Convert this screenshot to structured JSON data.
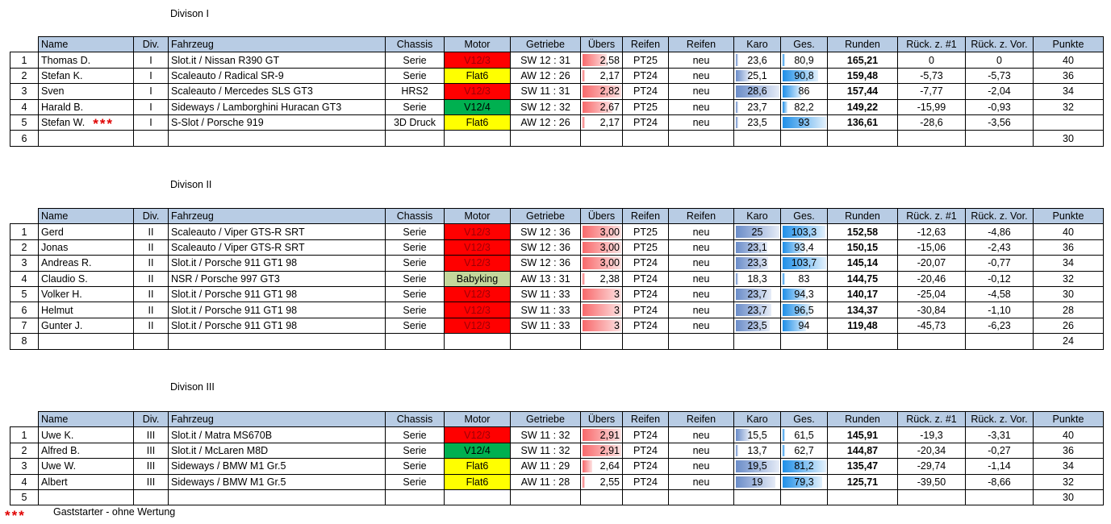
{
  "divisions": [
    {
      "title": "Divison I",
      "header": [
        "Name",
        "Div.",
        "Fahrzeug",
        "Chassis",
        "Motor",
        "Getriebe",
        "Übers",
        "Reifen",
        "Reifen",
        "Karo",
        "Ges.",
        "Runden",
        "Rück. z. #1",
        "Rück. z. Vor.",
        "Punkte"
      ],
      "rows": [
        {
          "cells": [
            "1",
            "Thomas D.",
            "I",
            "Slot.it / Nissan R390 GT",
            "Serie",
            "V12/3",
            "SW 12 : 31",
            "2,58",
            "PT25",
            "neu",
            "23,6",
            "80,9",
            "165,21",
            "0",
            "0",
            "40"
          ],
          "motor_color": "#ff0000"
        },
        {
          "cells": [
            "2",
            "Stefan K.",
            "I",
            "Scaleauto / Radical SR-9",
            "Serie",
            "Flat6",
            "AW 12 : 26",
            "2,17",
            "PT24",
            "neu",
            "25,1",
            "90,8",
            "159,48",
            "-5,73",
            "-5,73",
            "36"
          ],
          "motor_color": "#ffff00"
        },
        {
          "cells": [
            "3",
            "Sven",
            "I",
            "Scaleauto / Mercedes SLS GT3",
            "HRS2",
            "V12/3",
            "SW 11 : 31",
            "2,82",
            "PT24",
            "neu",
            "28,6",
            "86",
            "157,44",
            "-7,77",
            "-2,04",
            "34"
          ],
          "motor_color": "#ff0000"
        },
        {
          "cells": [
            "4",
            "Harald B.",
            "I",
            "Sideways / Lamborghini Huracan GT3",
            "Serie",
            "V12/4",
            "SW 12 : 32",
            "2,67",
            "PT25",
            "neu",
            "23,7",
            "82,2",
            "149,22",
            "-15,99",
            "-0,93",
            "32"
          ],
          "motor_color": "#00b050"
        },
        {
          "cells": [
            "5",
            "Stefan W.",
            "I",
            "S-Slot / Porsche 919",
            "3D Druck",
            "Flat6",
            "AW 12 : 26",
            "2,17",
            "PT24",
            "neu",
            "23,5",
            "93",
            "136,61",
            "-28,6",
            "-3,56",
            null
          ],
          "motor_color": "#ffff00",
          "marker": "***"
        },
        {
          "cells": [
            "6",
            null,
            null,
            null,
            null,
            null,
            null,
            null,
            null,
            null,
            null,
            null,
            null,
            null,
            null,
            "30"
          ]
        }
      ]
    },
    {
      "title": "Divison II",
      "header": [
        "Name",
        "Div.",
        "Fahrzeug",
        "Chassis",
        "Motor",
        "Getriebe",
        "Übers",
        "Reifen",
        "Reifen",
        "Karo",
        "Ges.",
        "Runden",
        "Rück. z. #1",
        "Rück. z. Vor.",
        "Punkte"
      ],
      "rows": [
        {
          "cells": [
            "1",
            "Gerd",
            "II",
            "Scaleauto / Viper GTS-R SRT",
            "Serie",
            "V12/3",
            "SW 12 : 36",
            "3,00",
            "PT25",
            "neu",
            "25",
            "103,3",
            "152,58",
            "-12,63",
            "-4,86",
            "40"
          ],
          "motor_color": "#ff0000"
        },
        {
          "cells": [
            "2",
            "Jonas",
            "II",
            "Scaleauto / Viper GTS-R SRT",
            "Serie",
            "V12/3",
            "SW 12 : 36",
            "3,00",
            "PT25",
            "neu",
            "23,1",
            "93,4",
            "150,15",
            "-15,06",
            "-2,43",
            "36"
          ],
          "motor_color": "#ff0000"
        },
        {
          "cells": [
            "3",
            "Andreas R.",
            "II",
            "Slot.it / Porsche 911 GT1 98",
            "Serie",
            "V12/3",
            "SW 12 : 36",
            "3,00",
            "PT24",
            "neu",
            "23,3",
            "103,7",
            "145,14",
            "-20,07",
            "-0,77",
            "34"
          ],
          "motor_color": "#ff0000"
        },
        {
          "cells": [
            "4",
            "Claudio S.",
            "II",
            "NSR / Porsche 997 GT3",
            "Serie",
            "Babyking",
            "AW 13 : 31",
            "2,38",
            "PT24",
            "neu",
            "18,3",
            "83",
            "144,75",
            "-20,46",
            "-0,12",
            "32"
          ],
          "motor_color": "#c4d79b"
        },
        {
          "cells": [
            "5",
            "Volker H.",
            "II",
            "Slot.it / Porsche 911 GT1 98",
            "Serie",
            "V12/3",
            "SW 11 : 33",
            "3",
            "PT24",
            "neu",
            "23,7",
            "94,3",
            "140,17",
            "-25,04",
            "-4,58",
            "30"
          ],
          "motor_color": "#ff0000"
        },
        {
          "cells": [
            "6",
            "Helmut",
            "II",
            "Slot.it / Porsche 911 GT1 98",
            "Serie",
            "V12/3",
            "SW 11 : 33",
            "3",
            "PT24",
            "neu",
            "23,7",
            "96,5",
            "134,37",
            "-30,84",
            "-1,10",
            "28"
          ],
          "motor_color": "#ff0000"
        },
        {
          "cells": [
            "7",
            "Gunter J.",
            "II",
            "Slot.it / Porsche 911 GT1 98",
            "Serie",
            "V12/3",
            "SW 11 : 33",
            "3",
            "PT24",
            "neu",
            "23,5",
            "94",
            "119,48",
            "-45,73",
            "-6,23",
            "26"
          ],
          "motor_color": "#ff0000"
        },
        {
          "cells": [
            "8",
            null,
            null,
            null,
            null,
            null,
            null,
            null,
            null,
            null,
            null,
            null,
            null,
            null,
            null,
            "24"
          ]
        }
      ]
    },
    {
      "title": "Divison III",
      "header": [
        "Name",
        "Div.",
        "Fahrzeug",
        "Chassis",
        "Motor",
        "Getriebe",
        "Übers",
        "Reifen",
        "Reifen",
        "Karo",
        "Ges.",
        "Runden",
        "Rück. z. #1",
        "Rück. z. Vor.",
        "Punkte"
      ],
      "rows": [
        {
          "cells": [
            "1",
            "Uwe K.",
            "III",
            "Slot.it / Matra MS670B",
            "Serie",
            "V12/3",
            "SW 11 : 32",
            "2,91",
            "PT24",
            "neu",
            "15,5",
            "61,5",
            "145,91",
            "-19,3",
            "-3,31",
            "40"
          ],
          "motor_color": "#ff0000"
        },
        {
          "cells": [
            "2",
            "Alfred B.",
            "III",
            "Slot.it / McLaren M8D",
            "Serie",
            "V12/4",
            "SW 11 : 32",
            "2,91",
            "PT24",
            "neu",
            "13,7",
            "62,7",
            "144,87",
            "-20,34",
            "-0,27",
            "36"
          ],
          "motor_color": "#00b050"
        },
        {
          "cells": [
            "3",
            "Uwe W.",
            "III",
            "Sideways / BMW M1 Gr.5",
            "Serie",
            "Flat6",
            "AW 11 : 29",
            "2,64",
            "PT24",
            "neu",
            "19,5",
            "81,2",
            "135,47",
            "-29,74",
            "-1,14",
            "34"
          ],
          "motor_color": "#ffff00"
        },
        {
          "cells": [
            "4",
            "Albert",
            "III",
            "Sideways / BMW M1 Gr.5",
            "Serie",
            "Flat6",
            "AW 11 : 28",
            "2,55",
            "PT24",
            "neu",
            "19",
            "79,3",
            "125,71",
            "-39,50",
            "-8,66",
            "32"
          ],
          "motor_color": "#ffff00"
        },
        {
          "cells": [
            "5",
            null,
            null,
            null,
            null,
            null,
            null,
            null,
            null,
            null,
            null,
            null,
            null,
            null,
            null,
            "30"
          ]
        }
      ]
    }
  ],
  "footer": {
    "marker": "***",
    "note": "Gaststarter - ohne Wertung"
  }
}
